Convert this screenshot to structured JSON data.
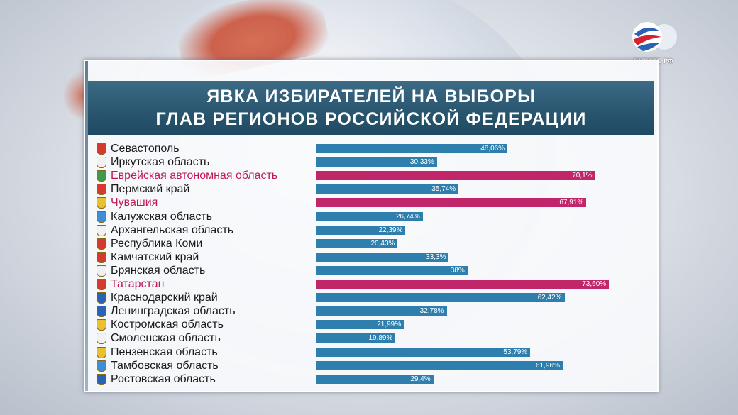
{
  "brand": {
    "logo_text": "ВМЕСТЕ·РФ"
  },
  "title": {
    "line1": "ЯВКА ИЗБИРАТЕЛЕЙ НА ВЫБОРЫ",
    "line2": "ГЛАВ РЕГИОНОВ РОССИЙСКОЙ ФЕДЕРАЦИИ"
  },
  "colors": {
    "bar": "#2e7fae",
    "highlight": "#c2266a",
    "title_bg": "#2a5670"
  },
  "chart_data": {
    "type": "bar",
    "orientation": "horizontal",
    "title": "ЯВКА ИЗБИРАТЕЛЕЙ НА ВЫБОРЫ ГЛАВ РЕГИОНОВ РОССИЙСКОЙ ФЕДЕРАЦИИ",
    "xlim": [
      0,
      100
    ],
    "categories": [
      "Севастополь",
      "Иркутская область",
      "Еврейская автономная область",
      "Пермский край",
      "Чувашия",
      "Калужская область",
      "Архангельская область",
      "Республика Коми",
      "Камчатский край",
      "Брянская область",
      "Татарстан",
      "Краснодарский край",
      "Ленинградская область",
      "Костромская область",
      "Смоленская область",
      "Пензенская область",
      "Тамбовская область",
      "Ростовская область"
    ],
    "values": [
      48.06,
      30.33,
      70.1,
      35.74,
      67.91,
      26.74,
      22.39,
      20.43,
      33.3,
      38,
      73.6,
      62.42,
      32.78,
      21.99,
      19.89,
      53.79,
      61.96,
      29.4
    ],
    "labels": [
      "48,06%",
      "30,33%",
      "70,1%",
      "35,74%",
      "67,91%",
      "26,74%",
      "22,39%",
      "20,43%",
      "33,3%",
      "38%",
      "73,60%",
      "62,42%",
      "32,78%",
      "21,99%",
      "19,89%",
      "53,79%",
      "61,96%",
      "29,4%"
    ],
    "highlighted": [
      false,
      false,
      true,
      false,
      true,
      false,
      false,
      false,
      false,
      false,
      true,
      false,
      false,
      false,
      false,
      false,
      false,
      false
    ]
  }
}
